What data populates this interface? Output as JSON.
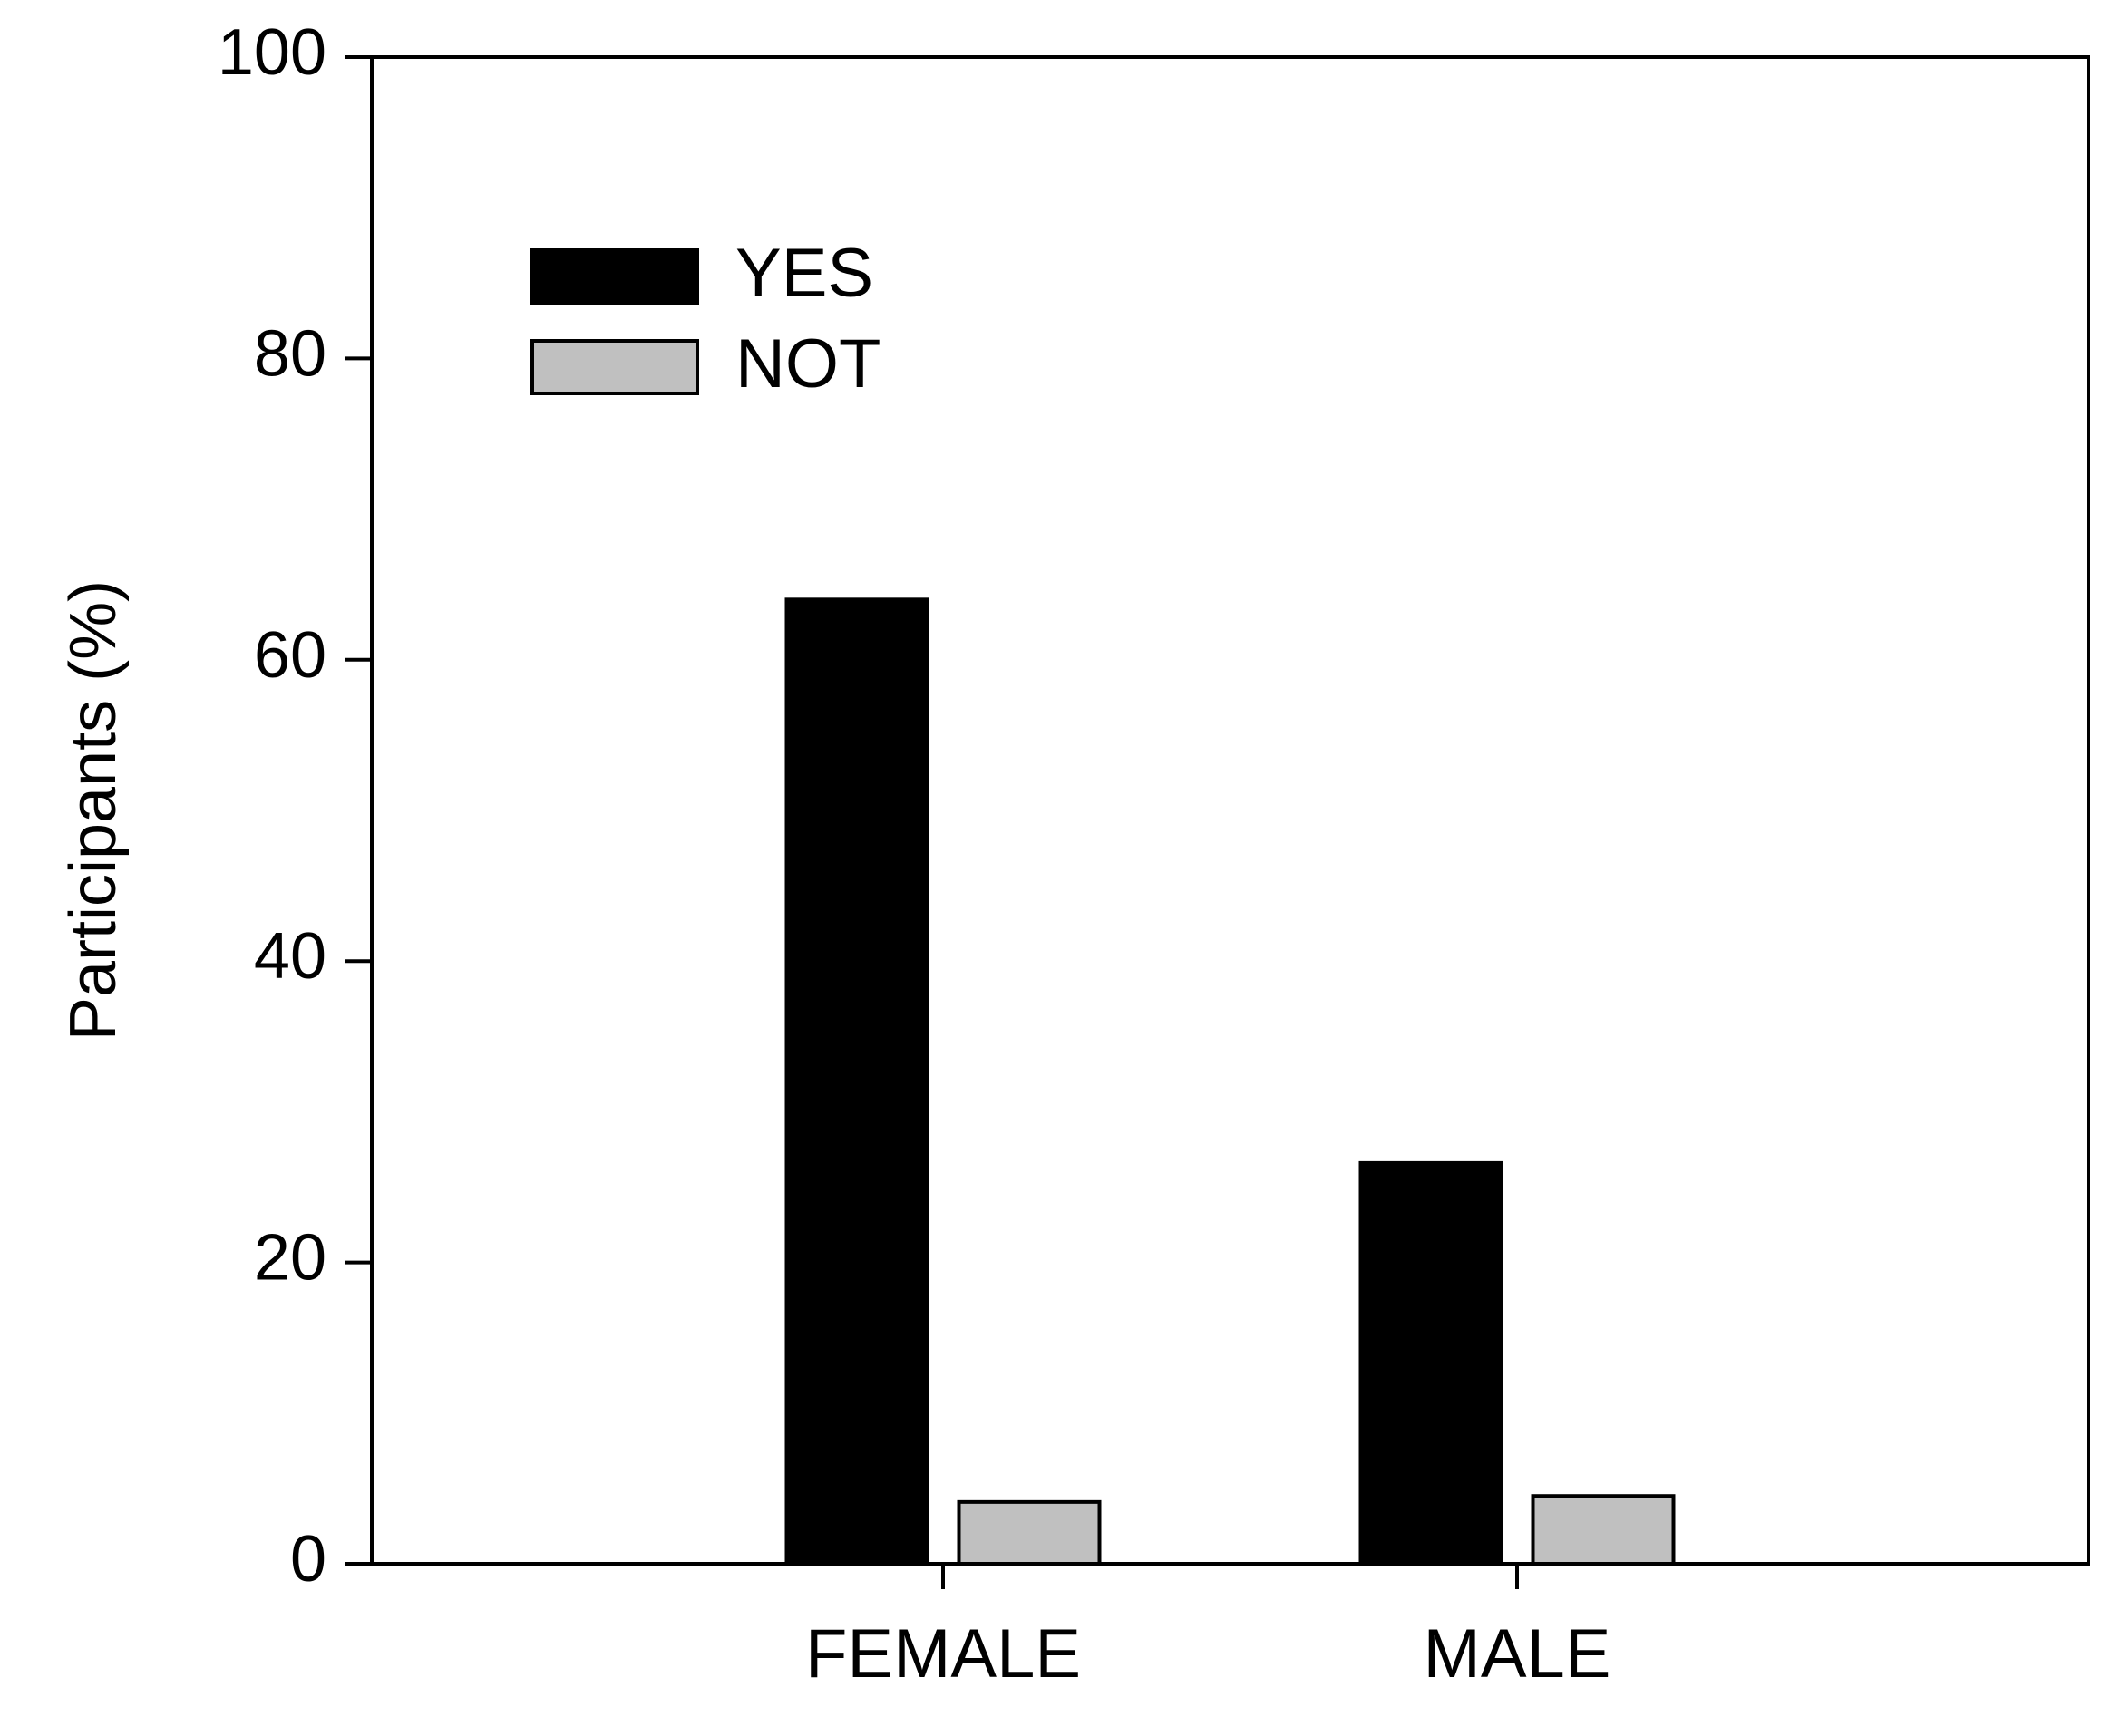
{
  "chart_data": {
    "type": "bar",
    "title": "",
    "xlabel": "",
    "ylabel": "Participants (%)",
    "categories": [
      "FEMALE",
      "MALE"
    ],
    "ylim": [
      0,
      100
    ],
    "yticks": [
      0,
      20,
      40,
      60,
      80,
      100
    ],
    "grid": false,
    "legend_position": "top-left",
    "series": [
      {
        "name": "YES",
        "color": "#000000",
        "values": [
          64,
          26.6
        ]
      },
      {
        "name": "NOT",
        "color": "#c0c0c0",
        "values": [
          4.1,
          4.5
        ]
      }
    ]
  }
}
